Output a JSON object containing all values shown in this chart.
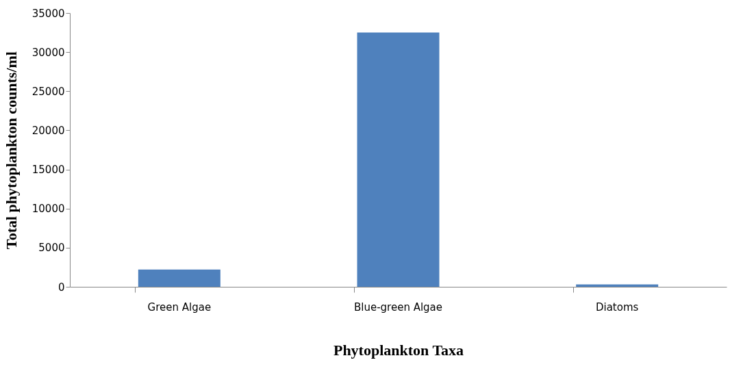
{
  "chart_data": {
    "type": "bar",
    "xlabel": "Phytoplankton Taxa",
    "ylabel": "Total phytoplankton counts/ml",
    "categories": [
      "Green Algae",
      "Blue-green Algae",
      "Diatoms"
    ],
    "series": [
      {
        "color": "#4f81bd",
        "values": [
          2200,
          32500,
          300
        ]
      }
    ],
    "ylim": [
      0,
      35000
    ],
    "yticks": [
      0,
      5000,
      10000,
      15000,
      20000,
      25000,
      30000,
      35000
    ],
    "grid": false
  }
}
